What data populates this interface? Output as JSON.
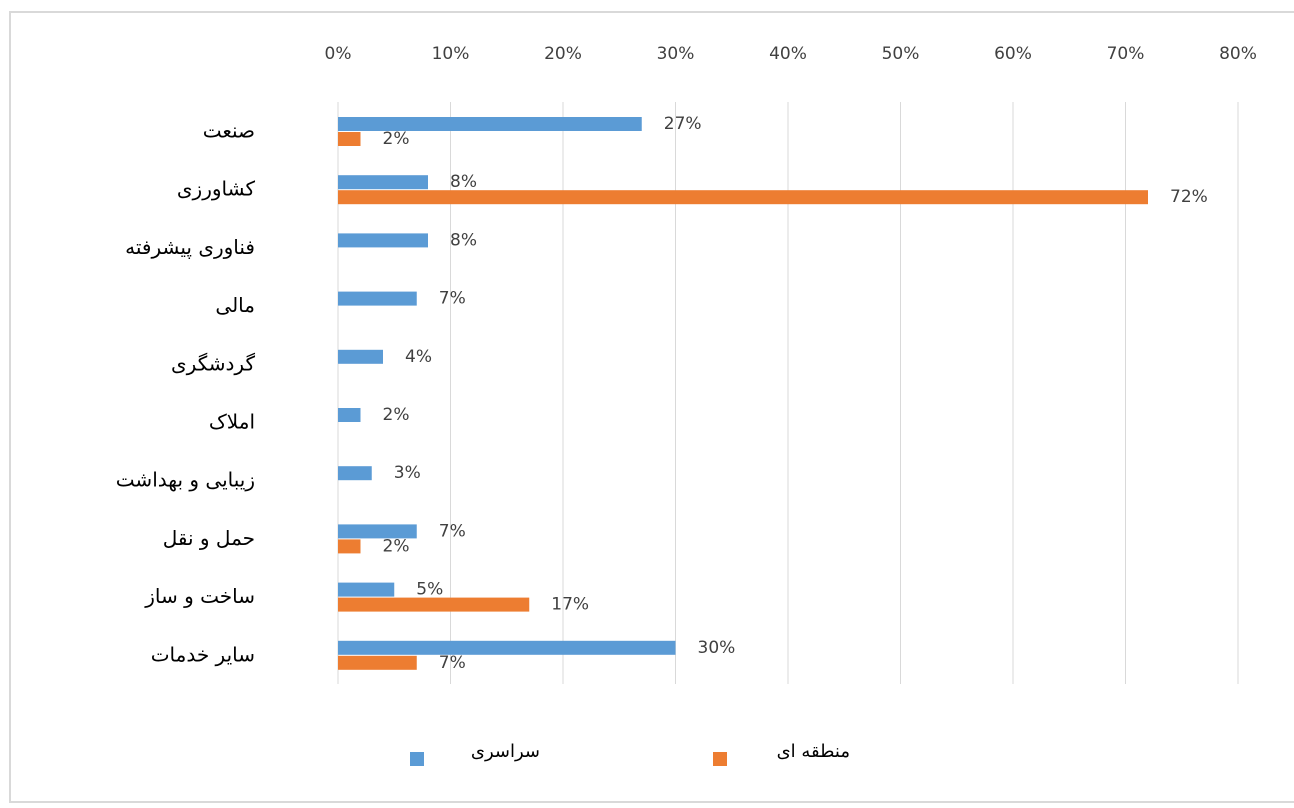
{
  "chart_data": {
    "type": "barh",
    "categories": [
      "صنعت",
      "کشاورزی",
      "فناوری پیشرفته",
      "مالی",
      "گردشگری",
      "املاک",
      "زیبایی و بهداشت",
      "حمل و نقل",
      "ساخت و ساز",
      "سایر خدمات"
    ],
    "series": [
      {
        "name": "سراسری",
        "color": "#5b9bd5",
        "values": [
          27,
          8,
          8,
          7,
          4,
          2,
          3,
          7,
          5,
          30
        ],
        "value_labels": [
          "27%",
          "8%",
          "8%",
          "7%",
          "4%",
          "2%",
          "3%",
          "7%",
          "5%",
          "30%"
        ]
      },
      {
        "name": "منطقه ای",
        "color": "#ed7d31",
        "values": [
          2,
          72,
          null,
          null,
          null,
          null,
          null,
          2,
          17,
          7
        ],
        "value_labels": [
          "2%",
          "72%",
          null,
          null,
          null,
          null,
          null,
          "2%",
          "17%",
          "7%"
        ]
      }
    ],
    "xlim": [
      0,
      80
    ],
    "xticks": [
      {
        "value": 0,
        "label": "0%"
      },
      {
        "value": 10,
        "label": "10%"
      },
      {
        "value": 20,
        "label": "20%"
      },
      {
        "value": 30,
        "label": "30%"
      },
      {
        "value": 40,
        "label": "40%"
      },
      {
        "value": 50,
        "label": "50%"
      },
      {
        "value": 60,
        "label": "60%"
      },
      {
        "value": 70,
        "label": "70%"
      },
      {
        "value": 80,
        "label": "80%"
      }
    ],
    "grid": true,
    "legend": "bottom"
  }
}
